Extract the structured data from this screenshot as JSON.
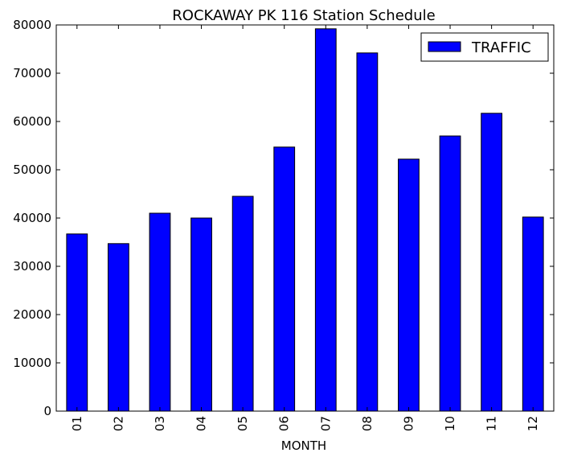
{
  "chart_data": {
    "type": "bar",
    "title": "ROCKAWAY PK 116 Station Schedule",
    "xlabel": "MONTH",
    "ylabel": "",
    "categories": [
      "01",
      "02",
      "03",
      "04",
      "05",
      "06",
      "07",
      "08",
      "09",
      "10",
      "11",
      "12"
    ],
    "series": [
      {
        "name": "TRAFFIC",
        "color": "#0000ff",
        "values": [
          36700,
          34700,
          41000,
          40000,
          44500,
          54700,
          79200,
          74200,
          52200,
          57000,
          61700,
          40200
        ]
      }
    ],
    "ylim": [
      0,
      80000
    ],
    "yticks": [
      "0",
      "10000",
      "20000",
      "30000",
      "40000",
      "50000",
      "60000",
      "70000",
      "80000"
    ],
    "grid": false,
    "legend_position": "top-right"
  }
}
